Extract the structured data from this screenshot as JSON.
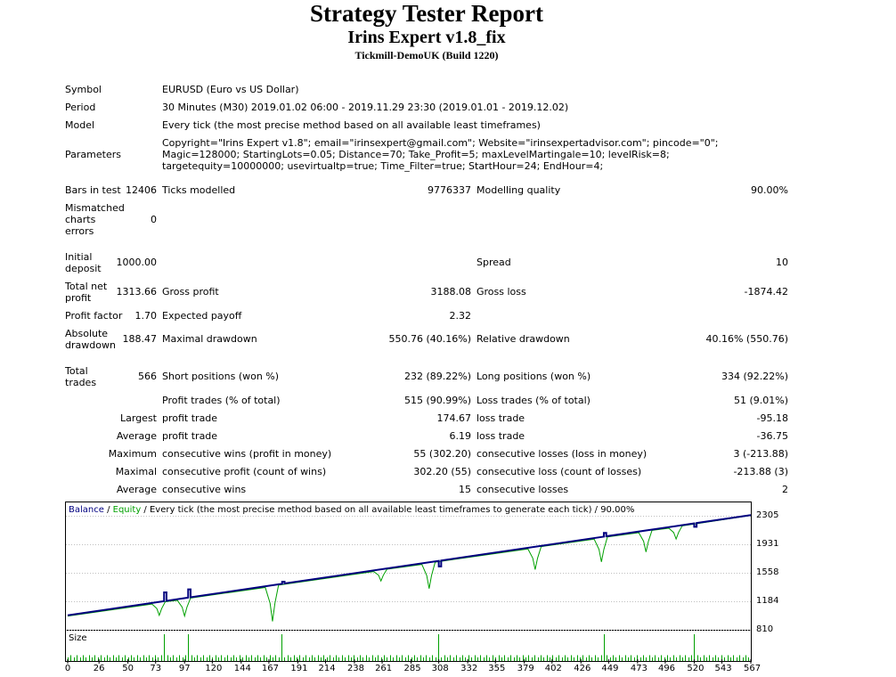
{
  "header": {
    "title": "Strategy Tester Report",
    "ea_name": "Irins Expert v1.8_fix",
    "server": "Tickmill-DemoUK (Build 1220)"
  },
  "info": {
    "symbol_label": "Symbol",
    "symbol_value": "EURUSD (Euro vs US Dollar)",
    "period_label": "Period",
    "period_value": "30 Minutes (M30) 2019.01.02 06:00 - 2019.11.29 23:30 (2019.01.01 - 2019.12.02)",
    "model_label": "Model",
    "model_value": "Every tick (the most precise method based on all available least timeframes)",
    "parameters_label": "Parameters",
    "parameters_value": "Copyright=\"Irins Expert v1.8\"; email=\"irinsexpert@gmail.com\"; Website=\"irinsexpertadvisor.com\"; pincode=\"0\"; Magic=128000; StartingLots=0.05; Distance=70; Take_Profit=5; maxLevelMartingale=10; levelRisk=8; targetequity=10000000; usevirtualtp=true; Time_Filter=true; StartHour=24; EndHour=4;"
  },
  "stats": {
    "bars_label": "Bars in test",
    "bars_value": "12406",
    "ticks_label": "Ticks modelled",
    "ticks_value": "9776337",
    "quality_label": "Modelling quality",
    "quality_value": "90.00%",
    "mismatch_label": "Mismatched charts errors",
    "mismatch_value": "0",
    "deposit_label": "Initial deposit",
    "deposit_value": "1000.00",
    "spread_label": "Spread",
    "spread_value": "10",
    "netprofit_label": "Total net profit",
    "netprofit_value": "1313.66",
    "grossprofit_label": "Gross profit",
    "grossprofit_value": "3188.08",
    "grossloss_label": "Gross loss",
    "grossloss_value": "-1874.42",
    "pf_label": "Profit factor",
    "pf_value": "1.70",
    "payoff_label": "Expected payoff",
    "payoff_value": "2.32",
    "absdd_label": "Absolute drawdown",
    "absdd_value": "188.47",
    "maxdd_label": "Maximal drawdown",
    "maxdd_value": "550.76 (40.16%)",
    "reldd_label": "Relative drawdown",
    "reldd_value": "40.16% (550.76)",
    "trades_label": "Total trades",
    "trades_value": "566",
    "short_label": "Short positions (won %)",
    "short_value": "232 (89.22%)",
    "long_label": "Long positions (won %)",
    "long_value": "334 (92.22%)",
    "ptrades_label": "Profit trades (% of total)",
    "ptrades_value": "515 (90.99%)",
    "ltrades_label": "Loss trades (% of total)",
    "ltrades_value": "51 (9.01%)",
    "largest_label": "Largest",
    "lp_label": "profit trade",
    "lp_value": "174.67",
    "ll_label": "loss trade",
    "ll_value": "-95.18",
    "average_label": "Average",
    "ap_label": "profit trade",
    "ap_value": "6.19",
    "al_label": "loss trade",
    "al_value": "-36.75",
    "maximum_label": "Maximum",
    "mcw_label": "consecutive wins (profit in money)",
    "mcw_value": "55 (302.20)",
    "mcl_label": "consecutive losses (loss in money)",
    "mcl_value": "3 (-213.88)",
    "maximal_label": "Maximal",
    "mcp_label": "consecutive profit (count of wins)",
    "mcp_value": "302.20 (55)",
    "mclc_label": "consecutive loss (count of losses)",
    "mclc_value": "-213.88 (3)",
    "average2_label": "Average",
    "acw_label": "consecutive wins",
    "acw_value": "15",
    "acl_label": "consecutive losses",
    "acl_value": "2"
  },
  "chart_data": {
    "type": "line",
    "legend": {
      "balance": "Balance",
      "sep1": " / ",
      "equity": "Equity",
      "rest": " / Every tick (the most precise method based on all available least timeframes to generate each tick) / 90.00%"
    },
    "size_label": "Size",
    "y_ticks": [
      2305,
      1931,
      1558,
      1184,
      810
    ],
    "ylim": [
      810,
      2305
    ],
    "x_ticks": [
      0,
      26,
      50,
      73,
      97,
      120,
      144,
      167,
      191,
      214,
      238,
      261,
      285,
      308,
      332,
      355,
      379,
      402,
      426,
      449,
      473,
      496,
      520,
      543,
      567
    ],
    "xlim": [
      0,
      567
    ],
    "series": [
      {
        "name": "Balance",
        "color": "#000080",
        "start": 1000,
        "end": 2314
      },
      {
        "name": "Equity",
        "color": "#00a000"
      }
    ],
    "balance_spikes": [
      {
        "x": 80,
        "y": 1300
      },
      {
        "x": 100,
        "y": 1340
      },
      {
        "x": 178,
        "y": 1440
      },
      {
        "x": 308,
        "y": 1640
      },
      {
        "x": 445,
        "y": 2080
      },
      {
        "x": 520,
        "y": 2160
      }
    ],
    "equity_dips": [
      {
        "x": 76,
        "y": 1000
      },
      {
        "x": 97,
        "y": 990
      },
      {
        "x": 170,
        "y": 920
      },
      {
        "x": 260,
        "y": 1450
      },
      {
        "x": 300,
        "y": 1350
      },
      {
        "x": 388,
        "y": 1600
      },
      {
        "x": 443,
        "y": 1700
      },
      {
        "x": 480,
        "y": 1830
      },
      {
        "x": 505,
        "y": 2000
      }
    ],
    "colors": {
      "balance": "#000080",
      "equity": "#00a000",
      "size": "#00a000",
      "axes": "#000000",
      "grid": "#bfbfbf"
    }
  }
}
